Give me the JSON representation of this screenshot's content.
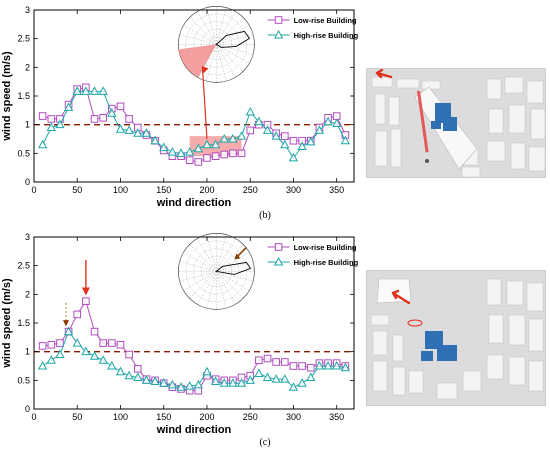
{
  "chart_data": [
    {
      "type": "line",
      "panel_label": "(b)",
      "xlabel": "wind direction",
      "ylabel": "wind speed (m/s)",
      "xlim": [
        0,
        370
      ],
      "ylim": [
        0,
        3
      ],
      "xticks": [
        "0",
        "50",
        "100",
        "150",
        "200",
        "250",
        "300",
        "350"
      ],
      "yticks": [
        "0",
        "0.5",
        "1",
        "1.5",
        "2",
        "2.5",
        "3"
      ],
      "grid": false,
      "legend_position": "top-right",
      "reference_line": 1,
      "x": [
        10,
        20,
        30,
        40,
        50,
        60,
        70,
        80,
        90,
        100,
        110,
        120,
        130,
        140,
        150,
        160,
        170,
        180,
        190,
        200,
        210,
        220,
        230,
        240,
        250,
        260,
        270,
        280,
        290,
        300,
        310,
        320,
        330,
        340,
        350,
        360
      ],
      "series": [
        {
          "name": "Low-rise Building",
          "marker": "square",
          "color": "#b04dbf",
          "values": [
            1.15,
            1.1,
            1.1,
            1.35,
            1.62,
            1.65,
            1.1,
            1.12,
            1.28,
            1.32,
            1.1,
            0.95,
            0.82,
            0.72,
            0.55,
            0.45,
            0.45,
            0.38,
            0.35,
            0.42,
            0.45,
            0.48,
            0.5,
            0.5,
            0.9,
            1.0,
            1.0,
            0.85,
            0.8,
            0.72,
            0.72,
            0.72,
            0.95,
            1.12,
            1.15,
            0.82
          ]
        },
        {
          "name": "High-rise Building",
          "marker": "triangle",
          "color": "#1fa6a6",
          "values": [
            0.65,
            0.95,
            1.0,
            1.3,
            1.58,
            1.58,
            1.58,
            1.58,
            1.2,
            0.92,
            0.9,
            0.85,
            0.85,
            0.72,
            0.6,
            0.52,
            0.5,
            0.52,
            0.58,
            0.65,
            0.65,
            0.75,
            0.75,
            0.8,
            1.22,
            1.05,
            0.9,
            0.8,
            0.65,
            0.42,
            0.62,
            0.7,
            0.9,
            1.05,
            1.02,
            0.72
          ]
        }
      ]
    },
    {
      "type": "line",
      "panel_label": "(c)",
      "xlabel": "wind direction",
      "ylabel": "wind speed (m/s)",
      "xlim": [
        0,
        370
      ],
      "ylim": [
        0,
        3
      ],
      "xticks": [
        "0",
        "50",
        "100",
        "150",
        "200",
        "250",
        "300",
        "350"
      ],
      "yticks": [
        "0",
        "0.5",
        "1",
        "1.5",
        "2",
        "2.5",
        "3"
      ],
      "grid": false,
      "legend_position": "top-right",
      "reference_line": 1,
      "x": [
        10,
        20,
        30,
        40,
        50,
        60,
        70,
        80,
        90,
        100,
        110,
        120,
        130,
        140,
        150,
        160,
        170,
        180,
        190,
        200,
        210,
        220,
        230,
        240,
        250,
        260,
        270,
        280,
        290,
        300,
        310,
        320,
        330,
        340,
        350,
        360
      ],
      "series": [
        {
          "name": "Low-rise Building",
          "marker": "square",
          "color": "#b04dbf",
          "values": [
            1.1,
            1.12,
            1.15,
            1.35,
            1.65,
            1.88,
            1.35,
            1.15,
            1.15,
            1.12,
            0.95,
            0.7,
            0.52,
            0.5,
            0.45,
            0.38,
            0.35,
            0.32,
            0.32,
            0.58,
            0.52,
            0.5,
            0.5,
            0.55,
            0.58,
            0.85,
            0.88,
            0.82,
            0.82,
            0.75,
            0.75,
            0.72,
            0.8,
            0.8,
            0.8,
            0.75
          ]
        },
        {
          "name": "High-rise Building",
          "marker": "triangle",
          "color": "#1fa6a6",
          "values": [
            0.75,
            0.85,
            0.95,
            1.35,
            1.15,
            1.0,
            0.92,
            0.85,
            0.75,
            0.65,
            0.58,
            0.55,
            0.5,
            0.48,
            0.45,
            0.42,
            0.38,
            0.4,
            0.42,
            0.65,
            0.48,
            0.45,
            0.45,
            0.45,
            0.5,
            0.62,
            0.55,
            0.52,
            0.52,
            0.38,
            0.45,
            0.55,
            0.75,
            0.75,
            0.75,
            0.72
          ]
        }
      ]
    }
  ],
  "colors": {
    "low_rise": "#b04dbf",
    "high_rise": "#1fa6a6",
    "reference_line": "#8b1a00",
    "highlight": "#f08080",
    "arrow": "#e0301e"
  },
  "icons": [
    "polar-rose-inset",
    "wind-arrow",
    "model-photo"
  ]
}
